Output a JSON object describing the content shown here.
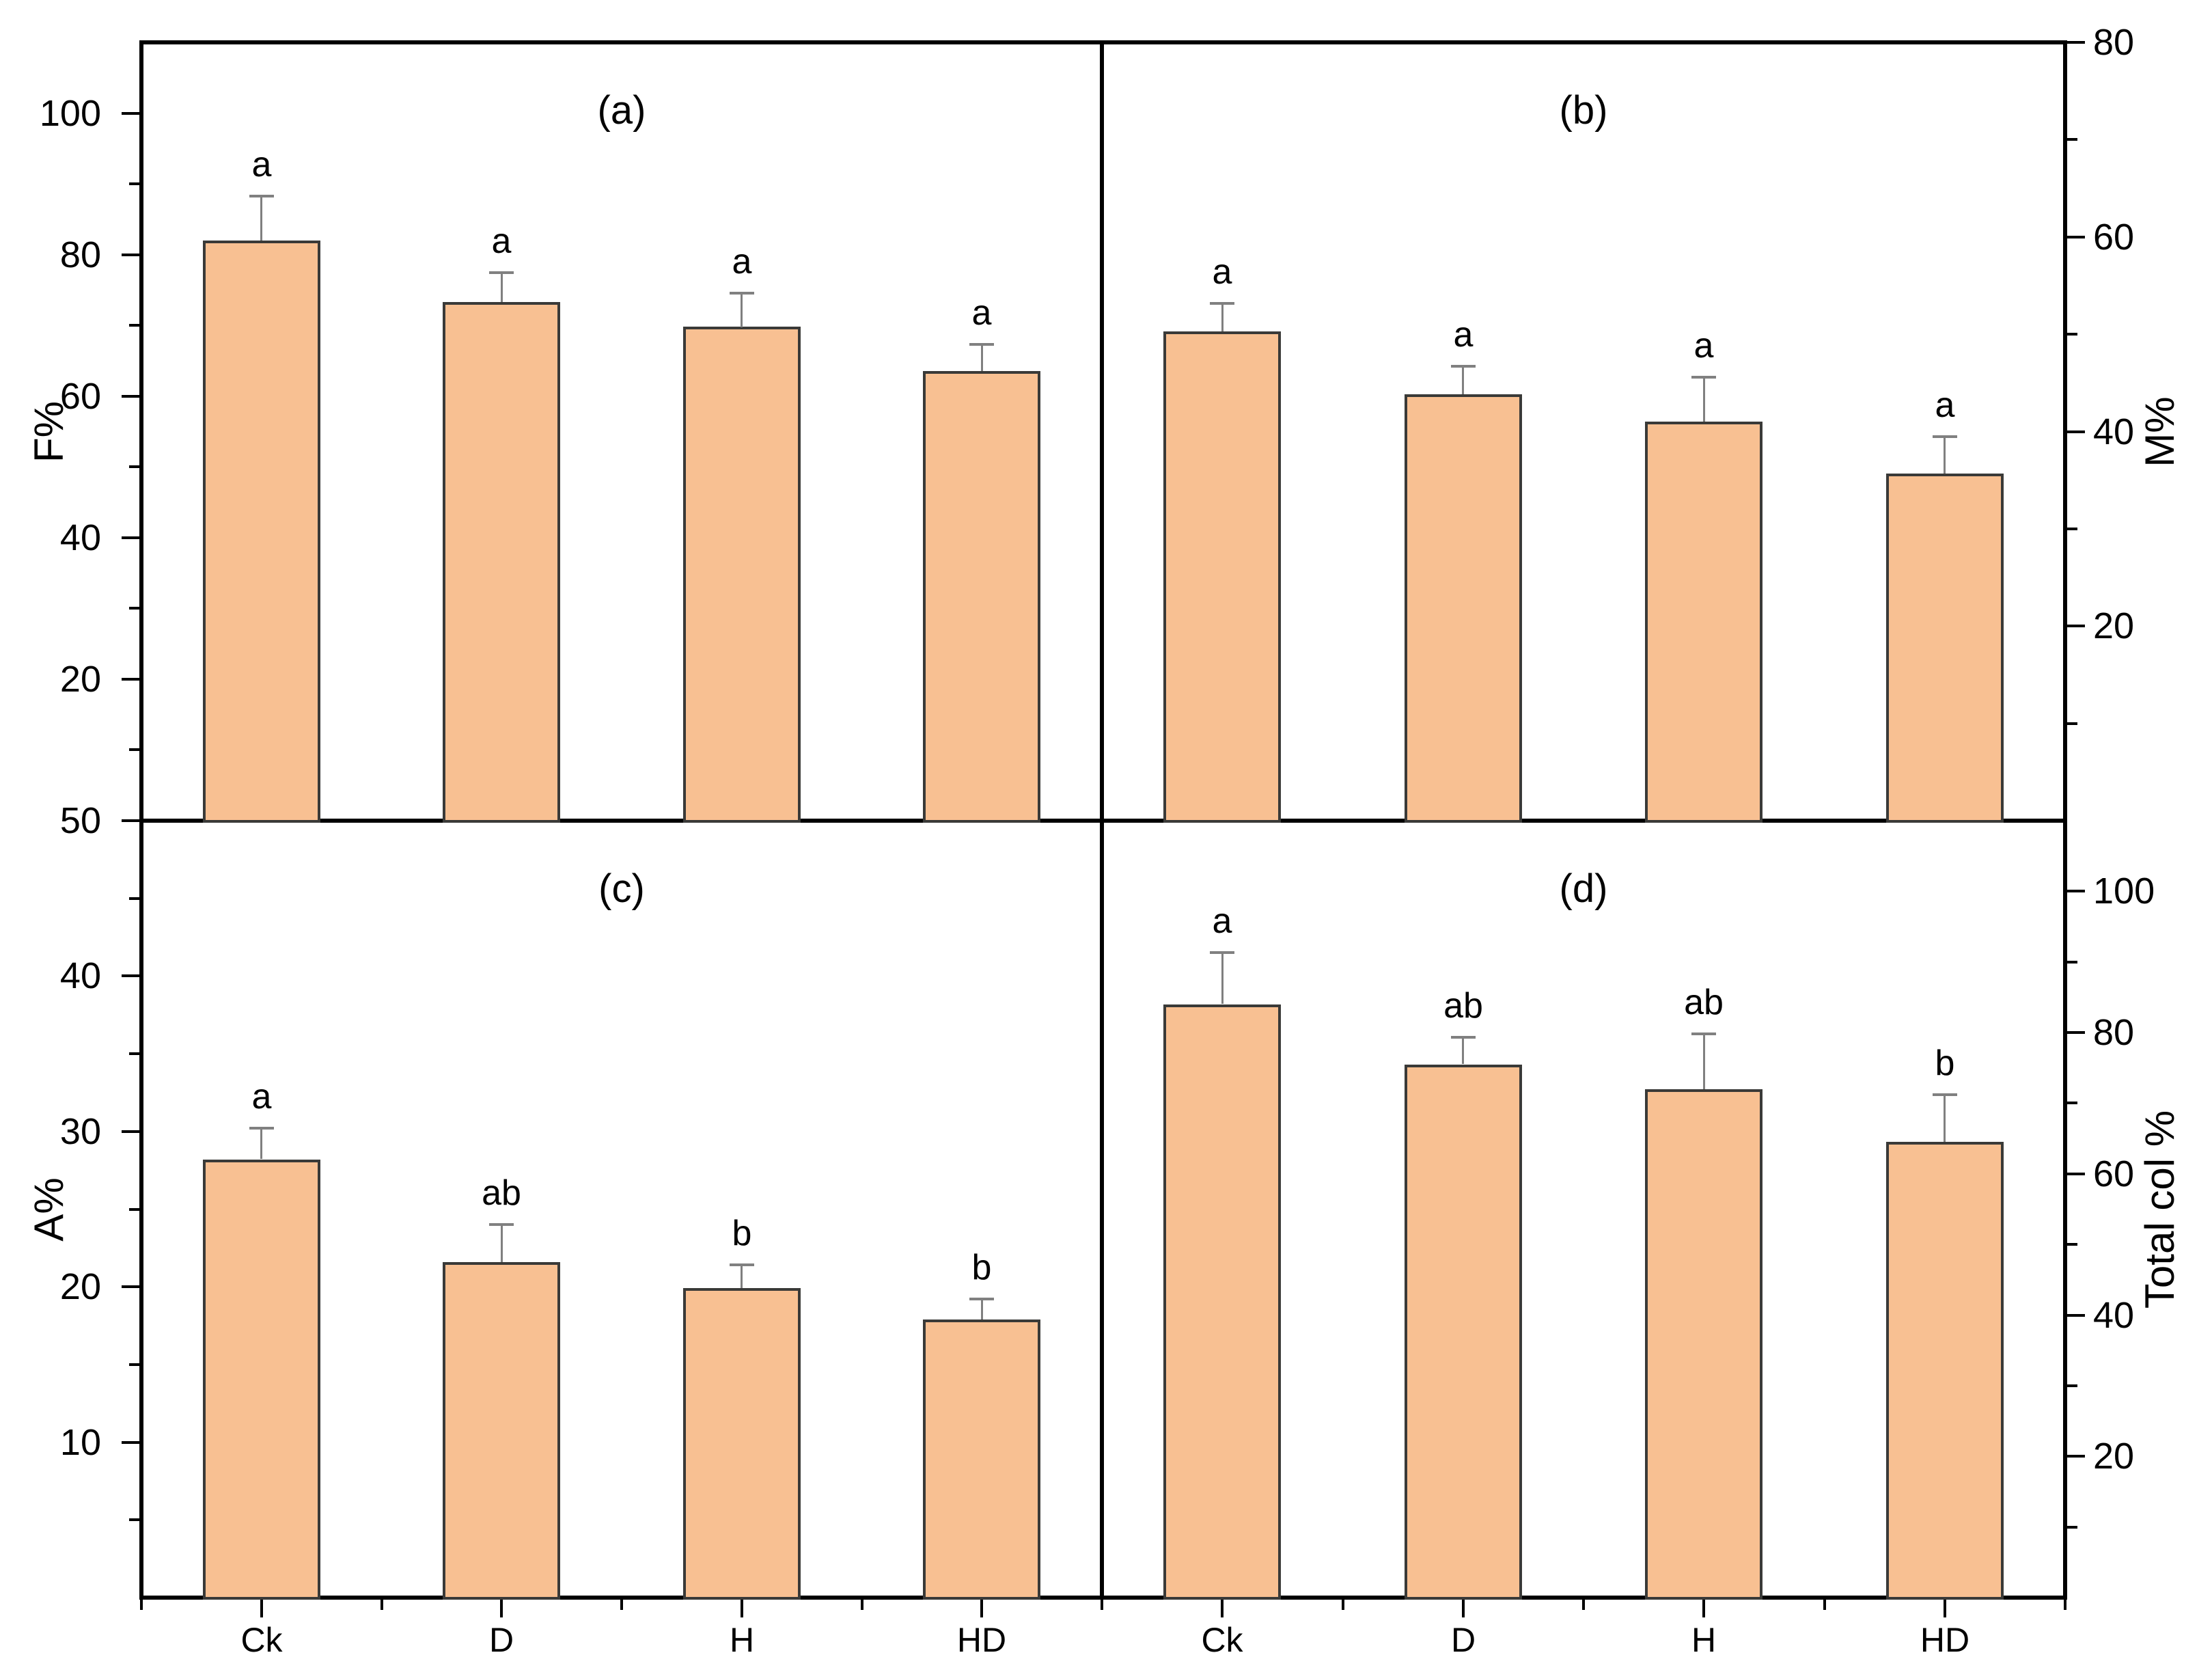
{
  "figure": {
    "description": "Four-panel bar chart with error bars and significance letters",
    "background_color": "#FFFFFF"
  },
  "colors": {
    "bar_fill": "#F8C092",
    "bar_border": "#3A3A38",
    "error_bar": "#808080",
    "axis_line": "#000000",
    "text": "#000000"
  },
  "chart_data": [
    {
      "type": "bar",
      "panel": "a",
      "title": "(a)",
      "ylabel": "F%",
      "axis_side": "left",
      "ylim": [
        0,
        110
      ],
      "major_ticks": [
        20,
        40,
        60,
        80,
        100
      ],
      "minor_ticks": [
        10,
        30,
        50,
        70,
        90
      ],
      "categories": [
        "Ck",
        "D",
        "H",
        "HD"
      ],
      "values": [
        82.0,
        73.3,
        69.8,
        63.5
      ],
      "errors": [
        6.3,
        4.2,
        4.8,
        3.8
      ],
      "sig_letters": [
        "a",
        "a",
        "a",
        "a"
      ],
      "show_x_labels": false,
      "grid": false
    },
    {
      "type": "bar",
      "panel": "b",
      "title": "(b)",
      "ylabel": "M%",
      "axis_side": "right",
      "ylim": [
        0,
        80
      ],
      "major_ticks": [
        20,
        40,
        60,
        80
      ],
      "minor_ticks": [
        10,
        30,
        50,
        70
      ],
      "categories": [
        "Ck",
        "D",
        "H",
        "HD"
      ],
      "values": [
        50.3,
        43.8,
        41.0,
        35.7
      ],
      "errors": [
        2.9,
        2.9,
        4.6,
        3.8
      ],
      "sig_letters": [
        "a",
        "a",
        "a",
        "a"
      ],
      "show_x_labels": false,
      "grid": false
    },
    {
      "type": "bar",
      "panel": "c",
      "title": "(c)",
      "ylabel": "A%",
      "axis_side": "left",
      "ylim": [
        0,
        50
      ],
      "major_ticks": [
        10,
        20,
        30,
        40,
        50
      ],
      "minor_ticks": [
        5,
        15,
        25,
        35,
        45
      ],
      "categories": [
        "Ck",
        "D",
        "H",
        "HD"
      ],
      "values": [
        28.2,
        21.6,
        19.9,
        17.9
      ],
      "errors": [
        2.0,
        2.4,
        1.5,
        1.3
      ],
      "sig_letters": [
        "a",
        "ab",
        "b",
        "b"
      ],
      "show_x_labels": true,
      "grid": false
    },
    {
      "type": "bar",
      "panel": "d",
      "title": "(d)",
      "ylabel": "Total col %",
      "axis_side": "right",
      "ylim": [
        0,
        110
      ],
      "major_ticks": [
        20,
        40,
        60,
        80,
        100
      ],
      "minor_ticks": [
        10,
        30,
        50,
        70,
        90
      ],
      "categories": [
        "Ck",
        "D",
        "H",
        "HD"
      ],
      "values": [
        84.0,
        75.5,
        72.0,
        64.5
      ],
      "errors": [
        7.3,
        3.8,
        7.8,
        6.7
      ],
      "sig_letters": [
        "a",
        "ab",
        "ab",
        "b"
      ],
      "show_x_labels": true,
      "grid": false
    }
  ]
}
